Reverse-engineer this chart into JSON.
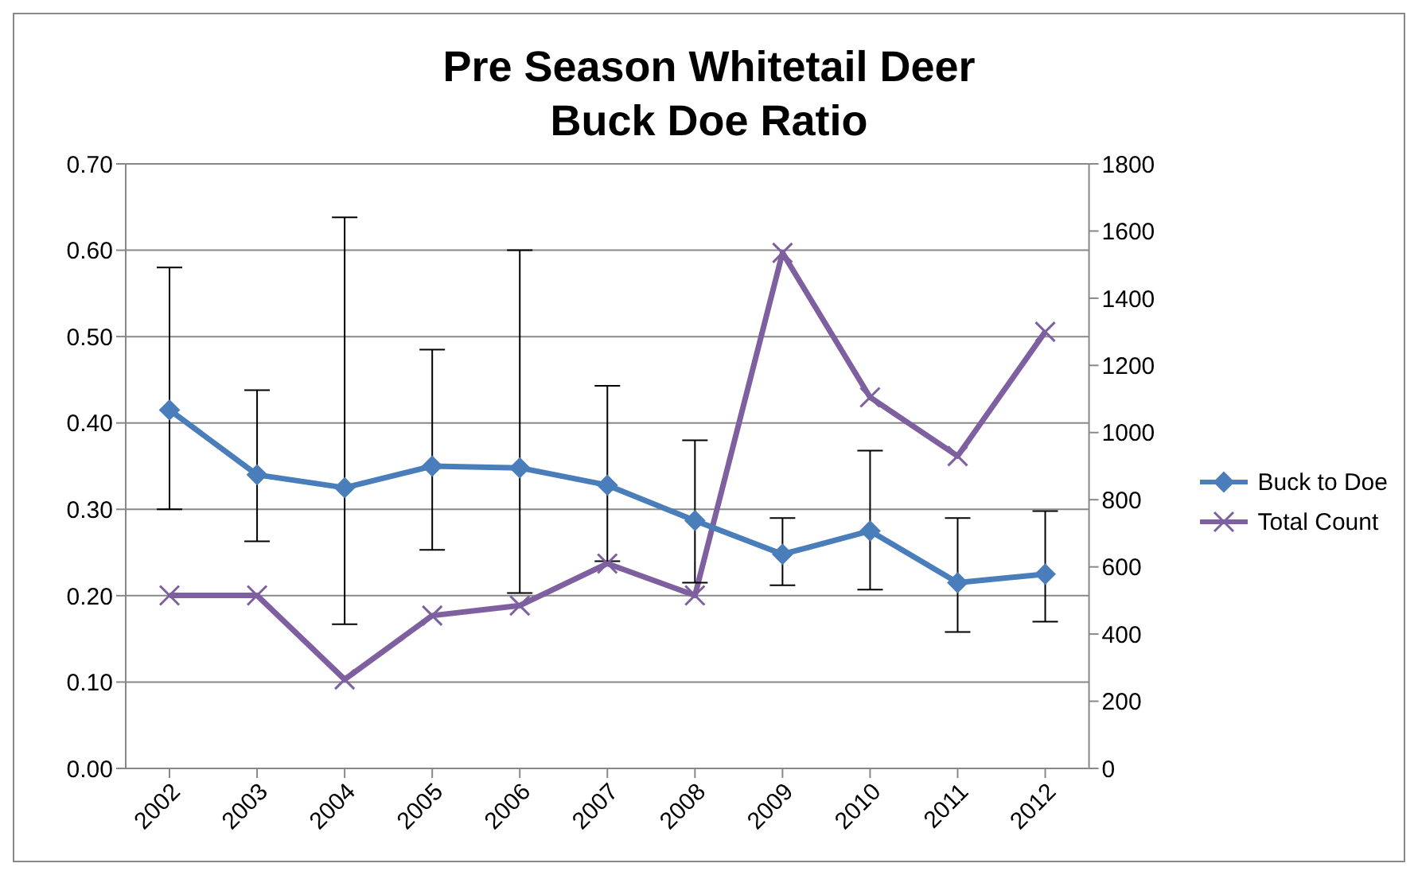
{
  "chart_data": {
    "type": "line",
    "title": "Pre Season Whitetail Deer\nBuck Doe Ratio",
    "categories": [
      "2002",
      "2003",
      "2004",
      "2005",
      "2006",
      "2007",
      "2008",
      "2009",
      "2010",
      "2011",
      "2012"
    ],
    "series": [
      {
        "name": "Buck to Doe",
        "color": "#4a7ebb",
        "marker": "diamond",
        "values": [
          0.415,
          0.34,
          0.325,
          0.35,
          0.348,
          0.328,
          0.287,
          0.248,
          0.275,
          0.215,
          0.225
        ],
        "errors": [
          [
            0.3,
            0.58
          ],
          [
            0.263,
            0.438
          ],
          [
            0.167,
            0.638
          ],
          [
            0.253,
            0.485
          ],
          [
            0.203,
            0.6
          ],
          [
            0.24,
            0.443
          ],
          [
            0.215,
            0.38
          ],
          [
            0.212,
            0.29
          ],
          [
            0.207,
            0.368
          ],
          [
            0.158,
            0.29
          ],
          [
            0.17,
            0.298
          ]
        ]
      },
      {
        "name": "Total Count",
        "color": "#7e5fa0",
        "marker": "cross",
        "axis": "y2",
        "values": [
          515,
          515,
          265,
          455,
          485,
          610,
          515,
          1535,
          1105,
          930,
          1300
        ]
      }
    ],
    "ylim": [
      0,
      0.7
    ],
    "yticks": [
      {
        "value": 0,
        "label": "0.00"
      },
      {
        "value": 0.1,
        "label": "0.10"
      },
      {
        "value": 0.2,
        "label": "0.20"
      },
      {
        "value": 0.3,
        "label": "0.30"
      },
      {
        "value": 0.4,
        "label": "0.40"
      },
      {
        "value": 0.5,
        "label": "0.50"
      },
      {
        "value": 0.6,
        "label": "0.60"
      },
      {
        "value": 0.7,
        "label": "0.70"
      }
    ],
    "y2lim": [
      0,
      1800
    ],
    "y2ticks": [
      0,
      200,
      400,
      600,
      800,
      1000,
      1200,
      1400,
      1600,
      1800
    ],
    "grid": "y",
    "legend": "right"
  }
}
